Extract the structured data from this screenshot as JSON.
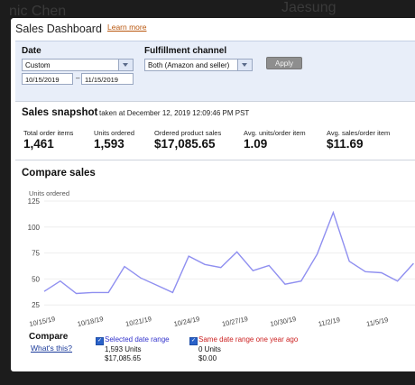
{
  "header": {
    "title": "Sales Dashboard",
    "learn_more": "Learn more"
  },
  "filters": {
    "date_label": "Date",
    "date_range_value": "Custom",
    "date_from": "10/15/2019",
    "date_separator": "–",
    "date_to": "11/15/2019",
    "channel_label": "Fulfillment channel",
    "channel_value": "Both (Amazon and seller)",
    "apply_label": "Apply"
  },
  "snapshot": {
    "title": "Sales snapshot",
    "subtitle": "taken at December 12, 2019 12:09:46 PM PST",
    "metrics": [
      {
        "label": "Total order items",
        "value": "1,461"
      },
      {
        "label": "Units ordered",
        "value": "1,593"
      },
      {
        "label": "Ordered product sales",
        "value": "$17,085.65"
      },
      {
        "label": "Avg. units/order item",
        "value": "1.09"
      },
      {
        "label": "Avg. sales/order item",
        "value": "$11.69"
      }
    ]
  },
  "compare": {
    "title": "Compare sales",
    "compare_label": "Compare",
    "whats_this": "What's this?",
    "legend": [
      {
        "label": "Selected date range",
        "units": "1,593 Units",
        "sales": "$17,085.65",
        "color": "#3333cc"
      },
      {
        "label": "Same date range one year ago",
        "units": "0 Units",
        "sales": "$0.00",
        "color": "#cc2222"
      }
    ]
  },
  "chart_data": {
    "type": "line",
    "ylabel": "Units ordered",
    "ylim": [
      0,
      125
    ],
    "yticks": [
      25,
      50,
      75,
      100,
      125
    ],
    "x_tick_labels": [
      "10/15/19",
      "10/18/19",
      "10/21/19",
      "10/24/19",
      "10/27/19",
      "10/30/19",
      "11/2/19",
      "11/5/19"
    ],
    "x": [
      "10/15/19",
      "10/16/19",
      "10/17/19",
      "10/18/19",
      "10/19/19",
      "10/20/19",
      "10/21/19",
      "10/22/19",
      "10/23/19",
      "10/24/19",
      "10/25/19",
      "10/26/19",
      "10/27/19",
      "10/28/19",
      "10/29/19",
      "10/30/19",
      "10/31/19",
      "11/1/19",
      "11/2/19",
      "11/3/19",
      "11/4/19",
      "11/5/19",
      "11/6/19",
      "11/7/19"
    ],
    "series": [
      {
        "name": "Selected date range",
        "color": "#8f8ff0",
        "values": [
          38,
          48,
          36,
          37,
          37,
          62,
          51,
          44,
          37,
          72,
          64,
          61,
          76,
          58,
          63,
          45,
          48,
          74,
          114,
          67,
          57,
          56,
          48,
          65
        ]
      },
      {
        "name": "Same date range one year ago",
        "color": "#e05050",
        "values": [
          0,
          0,
          0,
          0,
          0,
          0,
          0,
          0,
          0,
          0,
          0,
          0,
          0,
          0,
          0,
          0,
          0,
          0,
          0,
          0,
          0,
          0,
          0,
          0
        ]
      }
    ]
  }
}
